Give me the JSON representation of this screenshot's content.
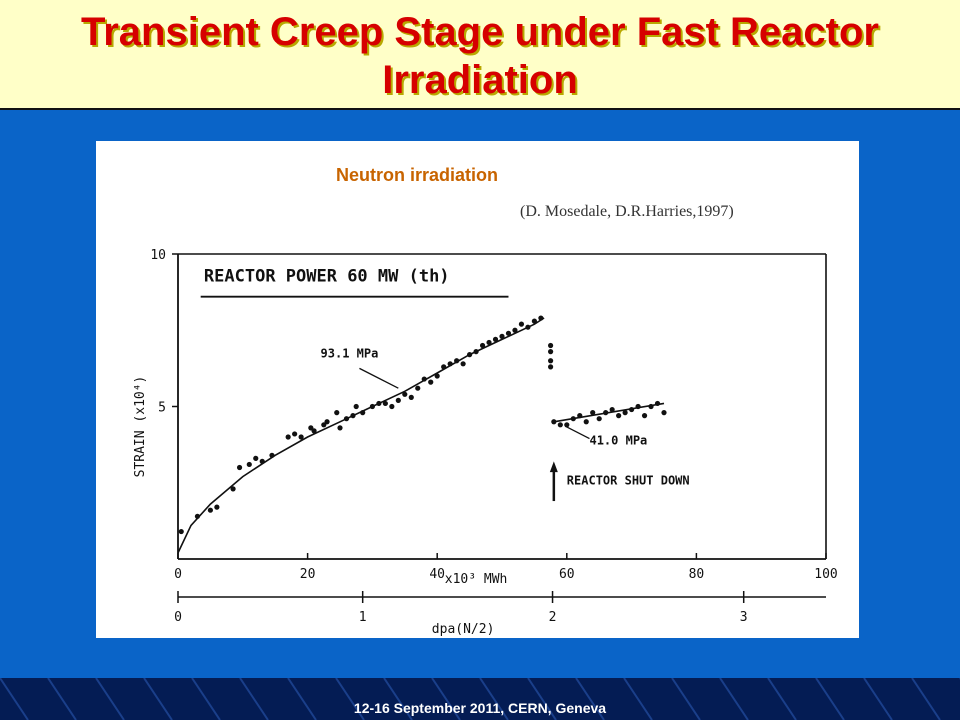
{
  "slide": {
    "title": "Transient Creep Stage under Fast Reactor Irradiation",
    "footer": "12-16  September 2011, CERN, Geneva"
  },
  "figure": {
    "heading": "Neutron irradiation",
    "citation": "(D. Mosedale, D.R.Harries,1997)",
    "panel_title": "REACTOR POWER 60 MW (th)",
    "curve_label_1": "93.1 MPa",
    "curve_label_2": "41.0 MPa",
    "event_label": "REACTOR SHUT DOWN"
  },
  "chart_data": {
    "type": "scatter",
    "title": "REACTOR POWER 60 MW (th)",
    "xlabel": "x10³ MWh",
    "xlabel_secondary": "dpa(N/2)",
    "ylabel": "STRAIN (x10⁴)",
    "xlim": [
      0,
      100
    ],
    "ylim": [
      0,
      10
    ],
    "x_ticks": [
      0,
      20,
      40,
      60,
      80,
      100
    ],
    "y_ticks": [
      5,
      10
    ],
    "y_tick_labels": [
      "5",
      "10"
    ],
    "secondary_ticks": [
      0,
      1,
      2,
      3
    ],
    "secondary_tick_x": [
      0,
      28.5,
      57.8,
      87.3
    ],
    "grid": false,
    "series": [
      {
        "name": "93.1 MPa",
        "x": [
          0.5,
          3,
          5,
          6,
          8.5,
          9.5,
          11,
          12,
          13,
          14.5,
          17,
          18,
          19,
          20.5,
          21,
          22.5,
          23,
          24.5,
          25,
          26,
          27,
          27.5,
          28.5,
          30,
          31,
          32,
          33,
          34,
          35,
          36,
          37,
          38,
          39,
          40,
          41,
          42,
          43,
          44,
          45,
          46,
          47,
          48,
          49,
          50,
          51,
          52,
          53,
          54,
          55,
          56,
          57.5,
          57.5,
          57.5,
          57.5
        ],
        "y": [
          0.9,
          1.4,
          1.6,
          1.7,
          2.3,
          3.0,
          3.1,
          3.3,
          3.2,
          3.4,
          4.0,
          4.1,
          4.0,
          4.3,
          4.2,
          4.4,
          4.5,
          4.8,
          4.3,
          4.6,
          4.7,
          5.0,
          4.8,
          5.0,
          5.1,
          5.1,
          5.0,
          5.2,
          5.4,
          5.3,
          5.6,
          5.9,
          5.8,
          6.0,
          6.3,
          6.4,
          6.5,
          6.4,
          6.7,
          6.8,
          7.0,
          7.1,
          7.2,
          7.3,
          7.4,
          7.5,
          7.7,
          7.6,
          7.8,
          7.9,
          7.0,
          6.8,
          6.5,
          6.3
        ],
        "fit_x": [
          0,
          2,
          5,
          10,
          15,
          20,
          25,
          30,
          35,
          40,
          45,
          50,
          55,
          56.5
        ],
        "fit_y": [
          0.2,
          1.1,
          1.8,
          2.7,
          3.4,
          4.0,
          4.5,
          5.0,
          5.5,
          6.1,
          6.7,
          7.2,
          7.7,
          7.9
        ]
      },
      {
        "name": "41.0 MPa",
        "x": [
          58,
          59,
          60,
          61,
          62,
          63,
          64,
          65,
          66,
          67,
          68,
          69,
          70,
          71,
          72,
          73,
          74,
          75
        ],
        "y": [
          4.5,
          4.4,
          4.4,
          4.6,
          4.7,
          4.5,
          4.8,
          4.6,
          4.8,
          4.9,
          4.7,
          4.8,
          4.9,
          5.0,
          4.7,
          5.0,
          5.1,
          4.8
        ],
        "fit_x": [
          58,
          75
        ],
        "fit_y": [
          4.5,
          5.1
        ]
      }
    ],
    "annotations": {
      "shutdown_x": 58
    }
  }
}
